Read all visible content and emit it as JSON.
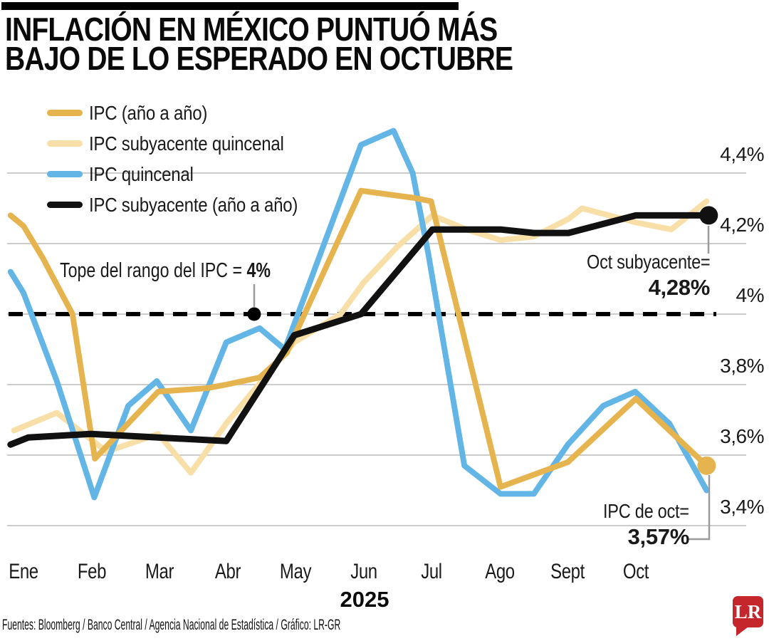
{
  "title": {
    "line1": "INFLACIÓN EN MÉXICO PUNTUÓ MÁS",
    "line2": "BAJO DE LO ESPERADO EN OCTUBRE"
  },
  "chart_data": {
    "type": "line",
    "x_ticks": [
      "Ene",
      "Feb",
      "Mar",
      "Abr",
      "May",
      "Jun",
      "Jul",
      "Ago",
      "Sept",
      "Oct"
    ],
    "x_year_label": "2025",
    "y_ticks": [
      {
        "label": "4,4%",
        "value": 4.4
      },
      {
        "label": "4,2%",
        "value": 4.2
      },
      {
        "label": "4%",
        "value": 4.0
      },
      {
        "label": "3,8%",
        "value": 3.8
      },
      {
        "label": "3,6%",
        "value": 3.6
      },
      {
        "label": "3,4%",
        "value": 3.4
      }
    ],
    "ylim": [
      3.3,
      4.55
    ],
    "grid": "horizontal",
    "grid_color": "#cccccc",
    "legend_position": "top-left",
    "reference_line": {
      "value": 4.0,
      "style": "dashed",
      "color": "#000000",
      "label_prefix": "Tope del rango del IPC = ",
      "label_bold": "4%",
      "dot_month": 3.39
    },
    "series": [
      {
        "name": "IPC (año a año)",
        "color": "#e6b44f",
        "points": [
          [
            -0.19,
            4.28
          ],
          [
            0,
            4.25
          ],
          [
            0.28,
            4.16
          ],
          [
            0.72,
            4.0
          ],
          [
            1.05,
            3.59
          ],
          [
            1.98,
            3.78
          ],
          [
            2.7,
            3.79
          ],
          [
            2.98,
            3.8
          ],
          [
            3.47,
            3.82
          ],
          [
            3.87,
            3.89
          ],
          [
            4.96,
            4.35
          ],
          [
            5.72,
            4.33
          ],
          [
            5.99,
            4.32
          ],
          [
            7.01,
            3.51
          ],
          [
            8.0,
            3.58
          ],
          [
            9.0,
            3.76
          ],
          [
            10.04,
            3.57
          ]
        ]
      },
      {
        "name": "IPC subyacente quincenal",
        "color": "#f7dfa7",
        "points": [
          [
            -0.14,
            3.67
          ],
          [
            0.49,
            3.72
          ],
          [
            1.22,
            3.61
          ],
          [
            1.98,
            3.66
          ],
          [
            2.46,
            3.55
          ],
          [
            2.98,
            3.69
          ],
          [
            3.5,
            3.81
          ],
          [
            3.98,
            3.92
          ],
          [
            4.66,
            4.0
          ],
          [
            5.0,
            4.09
          ],
          [
            5.49,
            4.19
          ],
          [
            6.01,
            4.28
          ],
          [
            6.51,
            4.24
          ],
          [
            7.01,
            4.21
          ],
          [
            7.5,
            4.22
          ],
          [
            8.01,
            4.27
          ],
          [
            8.21,
            4.3
          ],
          [
            9.0,
            4.26
          ],
          [
            9.52,
            4.24
          ],
          [
            10.04,
            4.32
          ]
        ]
      },
      {
        "name": "IPC quincenal",
        "color": "#62b5e5",
        "points": [
          [
            -0.19,
            4.12
          ],
          [
            0,
            4.06
          ],
          [
            0.49,
            3.81
          ],
          [
            1.04,
            3.48
          ],
          [
            1.54,
            3.74
          ],
          [
            1.96,
            3.81
          ],
          [
            2.46,
            3.67
          ],
          [
            2.98,
            3.92
          ],
          [
            3.47,
            3.96
          ],
          [
            3.84,
            3.9
          ],
          [
            4.96,
            4.48
          ],
          [
            5.44,
            4.52
          ],
          [
            5.72,
            4.4
          ],
          [
            5.95,
            4.17
          ],
          [
            6.48,
            3.57
          ],
          [
            7.01,
            3.49
          ],
          [
            7.5,
            3.49
          ],
          [
            8.0,
            3.63
          ],
          [
            8.52,
            3.74
          ],
          [
            8.99,
            3.78
          ],
          [
            9.49,
            3.69
          ],
          [
            10.04,
            3.5
          ]
        ]
      },
      {
        "name": "IPC subyacente (año a año)",
        "color": "#111111",
        "points": [
          [
            -0.19,
            3.63
          ],
          [
            0.07,
            3.65
          ],
          [
            0.99,
            3.66
          ],
          [
            1.98,
            3.65
          ],
          [
            2.98,
            3.64
          ],
          [
            3.98,
            3.94
          ],
          [
            4.96,
            4.0
          ],
          [
            6.01,
            4.24
          ],
          [
            7.01,
            4.24
          ],
          [
            7.5,
            4.23
          ],
          [
            8.01,
            4.23
          ],
          [
            9.0,
            4.28
          ],
          [
            10.07,
            4.28
          ]
        ]
      }
    ],
    "draw_order": [
      1,
      2,
      0,
      3
    ],
    "end_dots": [
      {
        "series": 3,
        "m": 10.07,
        "v": 4.28,
        "r": 13
      },
      {
        "series": 0,
        "m": 10.04,
        "v": 3.57,
        "r": 13
      }
    ],
    "leader_color": "#9b9b9b"
  },
  "annotations": {
    "oct_core": {
      "label": "Oct subyacente=",
      "value": "4,28%"
    },
    "oct_ipc": {
      "label": "IPC de oct=",
      "value": "3,57%"
    }
  },
  "footer": {
    "text": "Fuentes: Bloomberg / Banco Central / Agencia Nacional de Estadística / Gráfico: LR-GR"
  },
  "logo": {
    "text": "LR",
    "color": "#c5262c"
  }
}
